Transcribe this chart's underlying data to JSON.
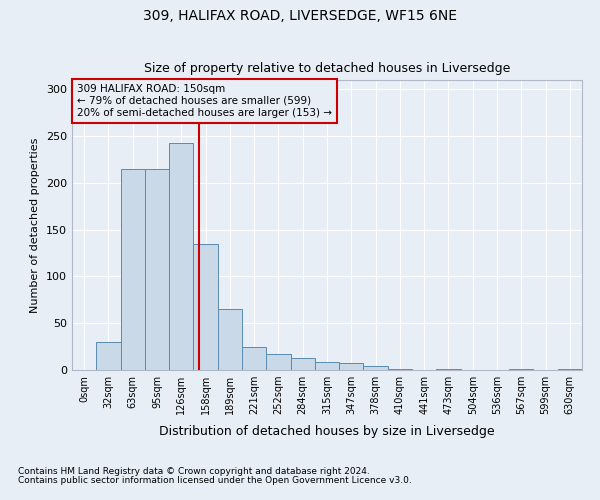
{
  "title1": "309, HALIFAX ROAD, LIVERSEDGE, WF15 6NE",
  "title2": "Size of property relative to detached houses in Liversedge",
  "xlabel": "Distribution of detached houses by size in Liversedge",
  "ylabel": "Number of detached properties",
  "footer1": "Contains HM Land Registry data © Crown copyright and database right 2024.",
  "footer2": "Contains public sector information licensed under the Open Government Licence v3.0.",
  "annotation_line1": "309 HALIFAX ROAD: 150sqm",
  "annotation_line2": "← 79% of detached houses are smaller (599)",
  "annotation_line3": "20% of semi-detached houses are larger (153) →",
  "bar_values": [
    0,
    30,
    215,
    215,
    243,
    135,
    65,
    25,
    17,
    13,
    9,
    7,
    4,
    1,
    0,
    1,
    0,
    0,
    1,
    0,
    1
  ],
  "bin_labels": [
    "0sqm",
    "32sqm",
    "63sqm",
    "95sqm",
    "126sqm",
    "158sqm",
    "189sqm",
    "221sqm",
    "252sqm",
    "284sqm",
    "315sqm",
    "347sqm",
    "378sqm",
    "410sqm",
    "441sqm",
    "473sqm",
    "504sqm",
    "536sqm",
    "567sqm",
    "599sqm",
    "630sqm"
  ],
  "bar_color": "#c9d9e8",
  "bar_edge_color": "#5a8ab0",
  "vline_color": "#cc0000",
  "annotation_box_color": "#cc0000",
  "bg_color": "#e8eef5",
  "grid_color": "#ffffff",
  "ylim": [
    0,
    310
  ],
  "yticks": [
    0,
    50,
    100,
    150,
    200,
    250,
    300
  ]
}
